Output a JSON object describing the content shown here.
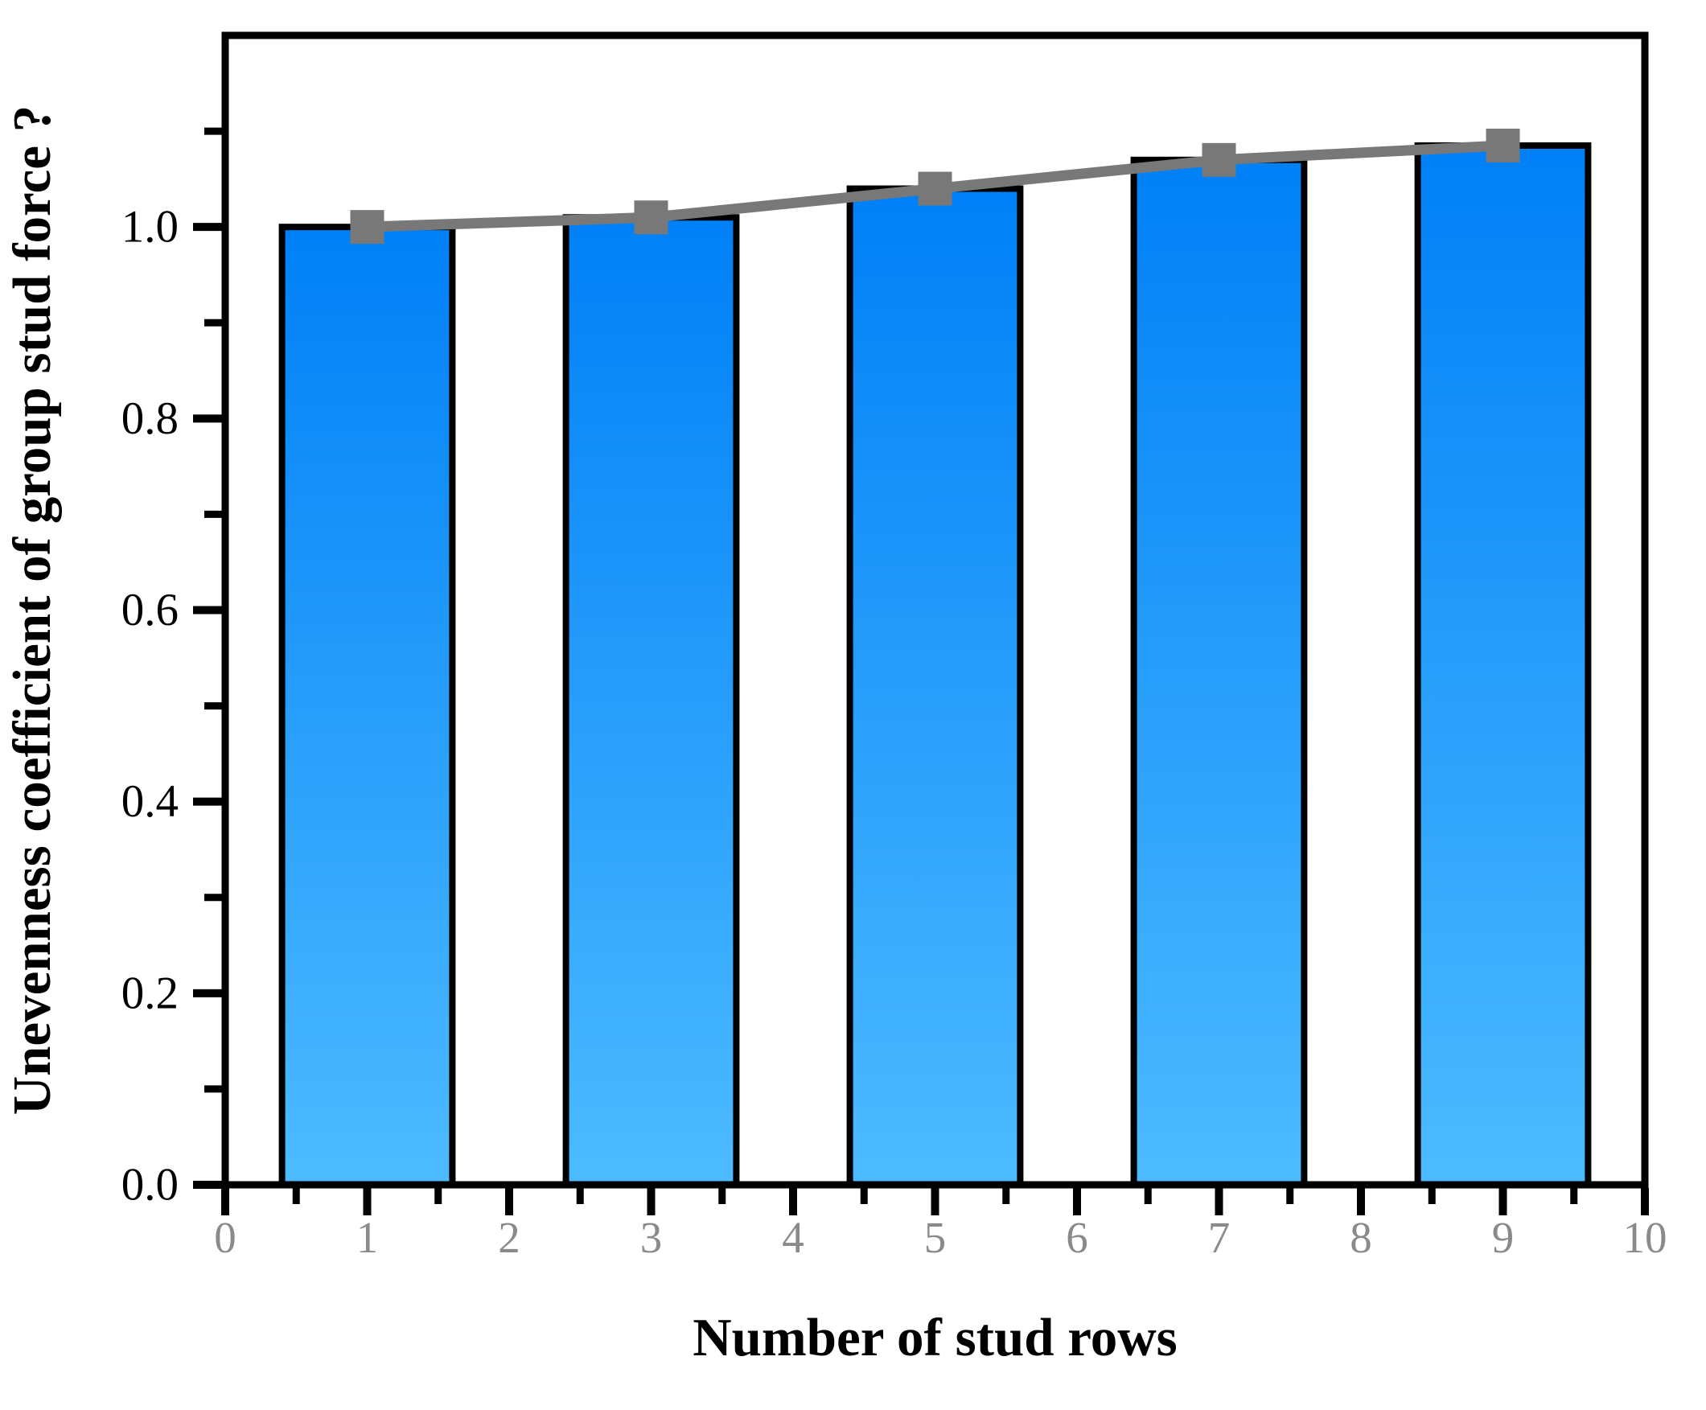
{
  "chart_data": {
    "type": "bar",
    "title": "",
    "xlabel": "Number of stud rows",
    "ylabel": "Unevenness coefficient of group stud force ?",
    "categories": [
      1,
      3,
      5,
      7,
      9
    ],
    "values": [
      1.0,
      1.01,
      1.04,
      1.07,
      1.085
    ],
    "series": [
      {
        "name": "group-stud-force-bars",
        "type": "bar",
        "x": [
          1,
          3,
          5,
          7,
          9
        ],
        "values": [
          1.0,
          1.01,
          1.04,
          1.07,
          1.085
        ]
      },
      {
        "name": "trend-line-with-square-markers",
        "type": "line",
        "x": [
          1,
          3,
          5,
          7,
          9
        ],
        "values": [
          1.0,
          1.01,
          1.04,
          1.07,
          1.085
        ]
      }
    ],
    "xlim": [
      0,
      10
    ],
    "ylim": [
      0,
      1.2
    ],
    "x_major_ticks": [
      0,
      1,
      2,
      3,
      4,
      5,
      6,
      7,
      8,
      9,
      10
    ],
    "x_tick_labels": [
      "0",
      "1",
      "2",
      "3",
      "4",
      "5",
      "6",
      "7",
      "8",
      "9",
      "10"
    ],
    "x_minor_step": 0.5,
    "y_major_ticks": [
      0.0,
      0.2,
      0.4,
      0.6,
      0.8,
      1.0
    ],
    "y_tick_labels": [
      "0.0",
      "0.2",
      "0.4",
      "0.6",
      "0.8",
      "1.0"
    ],
    "y_minor_step": 0.1,
    "bar_width_units": 1.2,
    "marker": "square",
    "grid": false,
    "legend": "none",
    "colors": {
      "bar_gradient_top": "#0080F7",
      "bar_gradient_bottom": "#4DBBFF",
      "bar_outline": "#000000",
      "line": "#787878",
      "marker": "#787878",
      "axis": "#000000",
      "x_tick_label": "#8A8A8A",
      "y_tick_label": "#000000",
      "background": "#FFFFFF"
    }
  }
}
